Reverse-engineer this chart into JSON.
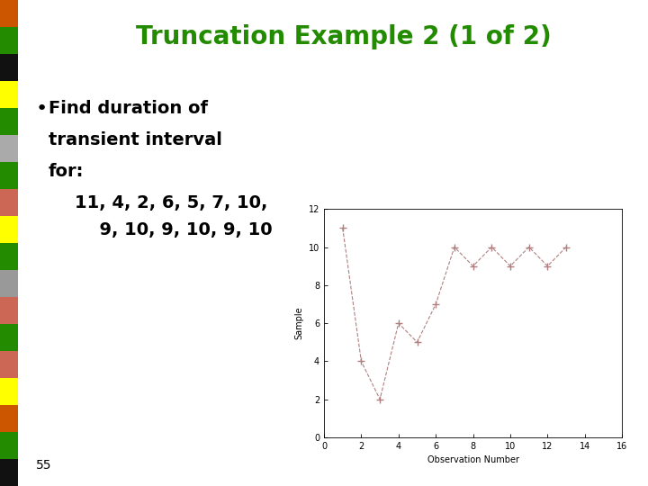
{
  "title": "Truncation Example 2 (1 of 2)",
  "title_color": "#228B00",
  "bullet_text_lines": [
    "Find duration of",
    "transient interval",
    "for:"
  ],
  "data_text_line1": "11, 4, 2, 6, 5, 7, 10,",
  "data_text_line2": "  9, 10, 9, 10, 9, 10",
  "page_number": "55",
  "bg_color": "#ffffff",
  "sidebar_colors": [
    "#cc5500",
    "#228B00",
    "#111111",
    "#ffff00",
    "#228B00",
    "#aaaaaa",
    "#228B00",
    "#cc6655",
    "#ffff00",
    "#228B00",
    "#999999",
    "#cc6655",
    "#228B00",
    "#cc6655",
    "#ffff00",
    "#cc5500",
    "#228B00",
    "#111111"
  ],
  "x_data": [
    1,
    2,
    3,
    4,
    5,
    6,
    7,
    8,
    9,
    10,
    11,
    12,
    13
  ],
  "y_data": [
    11,
    4,
    2,
    6,
    5,
    7,
    10,
    9,
    10,
    9,
    10,
    9,
    10
  ],
  "plot_color": "#b08080",
  "xlabel": "Observation Number",
  "ylabel": "Sample",
  "xlim": [
    0,
    16
  ],
  "ylim": [
    0,
    12
  ],
  "xticks": [
    0,
    2,
    4,
    6,
    8,
    10,
    12,
    14,
    16
  ],
  "yticks": [
    0,
    2,
    4,
    6,
    8,
    10,
    12
  ]
}
